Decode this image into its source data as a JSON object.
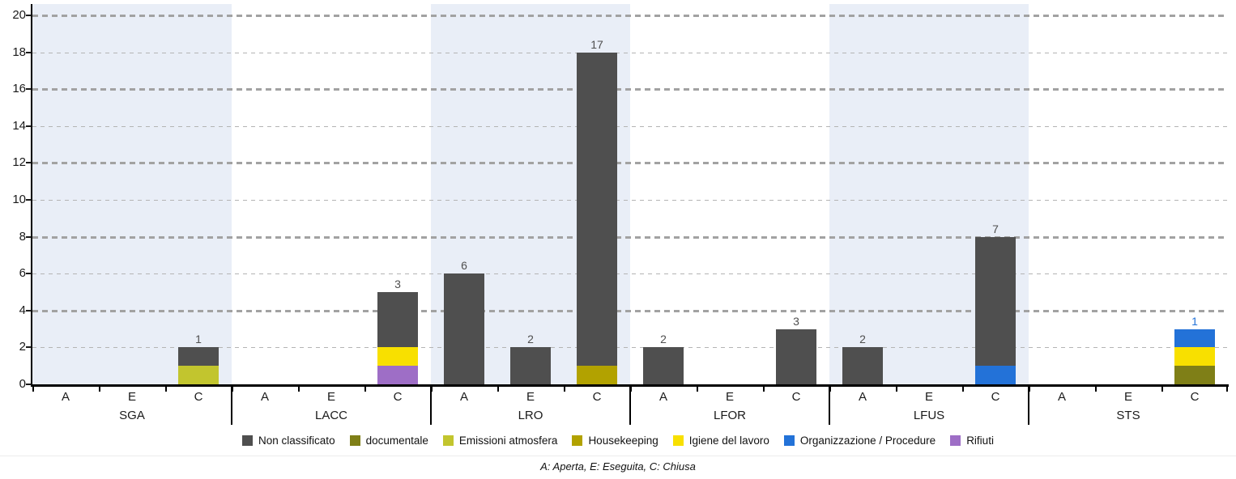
{
  "chart_data": {
    "type": "bar",
    "stacked": true,
    "y_axis": {
      "min": 0,
      "max": 20,
      "tick_step": 2
    },
    "status_labels": [
      "A",
      "E",
      "C"
    ],
    "legend": [
      {
        "label": "Non classificato",
        "color": "#4f4f4f"
      },
      {
        "label": "documentale",
        "color": "#7f7f17"
      },
      {
        "label": "Emissioni atmosfera",
        "color": "#c2c52e"
      },
      {
        "label": "Housekeeping",
        "color": "#b2a200"
      },
      {
        "label": "Igiene del lavoro",
        "color": "#f8e000"
      },
      {
        "label": "Organizzazione / Procedure",
        "color": "#2372d8"
      },
      {
        "label": "Rifiuti",
        "color": "#9e6ec6"
      }
    ],
    "groups": [
      {
        "label": "SGA",
        "shaded": true,
        "bars": [
          {
            "status": "A",
            "segments": []
          },
          {
            "status": "E",
            "segments": []
          },
          {
            "status": "C",
            "segments": [
              {
                "series": "Emissioni atmosfera",
                "value": 1
              },
              {
                "series": "Non classificato",
                "value": 1
              }
            ]
          }
        ]
      },
      {
        "label": "LACC",
        "shaded": false,
        "bars": [
          {
            "status": "A",
            "segments": []
          },
          {
            "status": "E",
            "segments": []
          },
          {
            "status": "C",
            "segments": [
              {
                "series": "Rifiuti",
                "value": 1
              },
              {
                "series": "Igiene del lavoro",
                "value": 1
              },
              {
                "series": "Non classificato",
                "value": 3
              }
            ]
          }
        ]
      },
      {
        "label": "LRO",
        "shaded": true,
        "bars": [
          {
            "status": "A",
            "segments": [
              {
                "series": "Non classificato",
                "value": 6
              }
            ]
          },
          {
            "status": "E",
            "segments": [
              {
                "series": "Non classificato",
                "value": 2
              }
            ]
          },
          {
            "status": "C",
            "segments": [
              {
                "series": "Housekeeping",
                "value": 1
              },
              {
                "series": "Non classificato",
                "value": 17
              }
            ]
          }
        ]
      },
      {
        "label": "LFOR",
        "shaded": false,
        "bars": [
          {
            "status": "A",
            "segments": [
              {
                "series": "Non classificato",
                "value": 2
              }
            ]
          },
          {
            "status": "E",
            "segments": []
          },
          {
            "status": "C",
            "segments": [
              {
                "series": "Non classificato",
                "value": 3
              }
            ]
          }
        ]
      },
      {
        "label": "LFUS",
        "shaded": true,
        "bars": [
          {
            "status": "A",
            "segments": [
              {
                "series": "Non classificato",
                "value": 2
              }
            ]
          },
          {
            "status": "E",
            "segments": []
          },
          {
            "status": "C",
            "segments": [
              {
                "series": "Organizzazione / Procedure",
                "value": 1
              },
              {
                "series": "Non classificato",
                "value": 7
              }
            ]
          }
        ]
      },
      {
        "label": "STS",
        "shaded": false,
        "bars": [
          {
            "status": "A",
            "segments": []
          },
          {
            "status": "E",
            "segments": []
          },
          {
            "status": "C",
            "segments": [
              {
                "series": "documentale",
                "value": 1
              },
              {
                "series": "Igiene del lavoro",
                "value": 1
              },
              {
                "series": "Organizzazione / Procedure",
                "value": 1
              }
            ]
          }
        ]
      }
    ],
    "footnote": "A: Aperta, E: Eseguita, C: Chiusa",
    "style": {
      "band_color": "#e9eef7",
      "axis_color": "#000000",
      "grid_major_color": "#a2a2a2",
      "grid_minor_color": "#b4b4b4",
      "text_color": "#1a1a1a"
    }
  }
}
